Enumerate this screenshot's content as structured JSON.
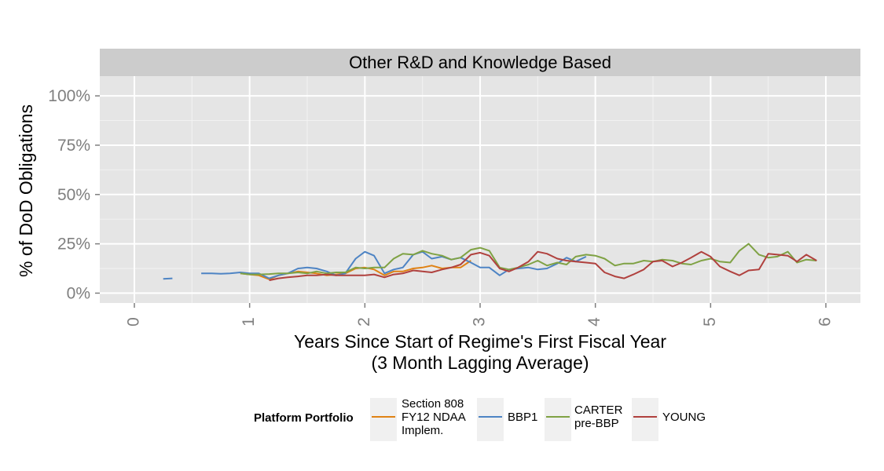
{
  "chart_data": {
    "type": "line",
    "facet_title": "Other R&D and Knowledge Based",
    "xlabel_lines": [
      "Years Since Start of Regime's First Fiscal Year",
      "(3 Month Lagging Average)"
    ],
    "ylabel": "% of DoD Obligations",
    "xlim": [
      -0.3,
      6.3
    ],
    "ylim": [
      -0.05,
      1.1
    ],
    "x_ticks": [
      0,
      1,
      2,
      3,
      4,
      5,
      6
    ],
    "x_tick_labels": [
      "0",
      "1",
      "2",
      "3",
      "4",
      "5",
      "6"
    ],
    "y_ticks": [
      0,
      0.25,
      0.5,
      0.75,
      1.0
    ],
    "y_tick_labels": [
      "0%",
      "25%",
      "50%",
      "75%",
      "100%"
    ],
    "grid": true,
    "legend": {
      "title": "Platform Portfolio",
      "position": "bottom",
      "entries": [
        {
          "label_lines": [
            "Section 808",
            "FY12 NDAA",
            "Implem."
          ],
          "color": "#E08214"
        },
        {
          "label_lines": [
            "BBP1"
          ],
          "color": "#4E84C4"
        },
        {
          "label_lines": [
            "CARTER",
            "pre-BBP"
          ],
          "color": "#7FA244"
        },
        {
          "label_lines": [
            "YOUNG"
          ],
          "color": "#B0413E"
        }
      ]
    },
    "series": [
      {
        "name": "Section 808 FY12 NDAA Implem.",
        "color": "#E08214",
        "segments": [
          [
            [
              0.92,
              0.1
            ],
            [
              1.0,
              0.095
            ],
            [
              1.08,
              0.09
            ],
            [
              1.17,
              0.07
            ],
            [
              1.25,
              0.09
            ],
            [
              1.33,
              0.1
            ],
            [
              1.42,
              0.11
            ],
            [
              1.5,
              0.105
            ],
            [
              1.58,
              0.1
            ],
            [
              1.67,
              0.09
            ],
            [
              1.75,
              0.095
            ],
            [
              1.83,
              0.1
            ],
            [
              1.92,
              0.125
            ],
            [
              2.0,
              0.13
            ],
            [
              2.08,
              0.12
            ],
            [
              2.17,
              0.09
            ],
            [
              2.25,
              0.11
            ],
            [
              2.33,
              0.11
            ],
            [
              2.42,
              0.125
            ],
            [
              2.5,
              0.13
            ],
            [
              2.58,
              0.14
            ],
            [
              2.67,
              0.125
            ],
            [
              2.75,
              0.13
            ],
            [
              2.83,
              0.13
            ],
            [
              2.92,
              0.165
            ]
          ]
        ]
      },
      {
        "name": "BBP1",
        "color": "#4E84C4",
        "segments": [
          [
            [
              0.25,
              0.072
            ],
            [
              0.33,
              0.075
            ]
          ],
          [
            [
              0.58,
              0.1
            ],
            [
              0.67,
              0.1
            ],
            [
              0.75,
              0.098
            ],
            [
              0.83,
              0.1
            ],
            [
              0.92,
              0.105
            ],
            [
              1.0,
              0.1
            ],
            [
              1.08,
              0.1
            ],
            [
              1.17,
              0.075
            ],
            [
              1.25,
              0.09
            ],
            [
              1.33,
              0.1
            ],
            [
              1.42,
              0.125
            ],
            [
              1.5,
              0.13
            ],
            [
              1.58,
              0.125
            ],
            [
              1.67,
              0.11
            ],
            [
              1.75,
              0.09
            ],
            [
              1.83,
              0.1
            ],
            [
              1.92,
              0.175
            ],
            [
              2.0,
              0.21
            ],
            [
              2.08,
              0.19
            ],
            [
              2.17,
              0.1
            ],
            [
              2.25,
              0.12
            ],
            [
              2.33,
              0.13
            ],
            [
              2.42,
              0.195
            ],
            [
              2.5,
              0.21
            ],
            [
              2.58,
              0.175
            ],
            [
              2.67,
              0.185
            ],
            [
              2.75,
              0.17
            ],
            [
              2.83,
              0.18
            ],
            [
              2.92,
              0.155
            ],
            [
              3.0,
              0.13
            ],
            [
              3.08,
              0.13
            ],
            [
              3.17,
              0.09
            ],
            [
              3.25,
              0.12
            ],
            [
              3.33,
              0.125
            ],
            [
              3.42,
              0.13
            ],
            [
              3.5,
              0.12
            ],
            [
              3.58,
              0.125
            ],
            [
              3.67,
              0.15
            ],
            [
              3.75,
              0.18
            ],
            [
              3.83,
              0.16
            ],
            [
              3.92,
              0.185
            ]
          ]
        ]
      },
      {
        "name": "CARTER pre-BBP",
        "color": "#7FA244",
        "segments": [
          [
            [
              0.92,
              0.1
            ],
            [
              1.0,
              0.095
            ],
            [
              1.08,
              0.095
            ],
            [
              1.17,
              0.097
            ],
            [
              1.25,
              0.1
            ],
            [
              1.33,
              0.1
            ],
            [
              1.42,
              0.105
            ],
            [
              1.5,
              0.1
            ],
            [
              1.58,
              0.11
            ],
            [
              1.67,
              0.1
            ],
            [
              1.75,
              0.105
            ],
            [
              1.83,
              0.105
            ],
            [
              1.92,
              0.13
            ],
            [
              2.0,
              0.125
            ],
            [
              2.08,
              0.13
            ],
            [
              2.17,
              0.13
            ],
            [
              2.25,
              0.175
            ],
            [
              2.33,
              0.2
            ],
            [
              2.42,
              0.195
            ],
            [
              2.5,
              0.215
            ],
            [
              2.58,
              0.2
            ],
            [
              2.67,
              0.19
            ],
            [
              2.75,
              0.17
            ],
            [
              2.83,
              0.18
            ],
            [
              2.92,
              0.22
            ],
            [
              3.0,
              0.23
            ],
            [
              3.08,
              0.215
            ],
            [
              3.17,
              0.13
            ],
            [
              3.25,
              0.12
            ],
            [
              3.33,
              0.13
            ],
            [
              3.42,
              0.145
            ],
            [
              3.5,
              0.165
            ],
            [
              3.58,
              0.14
            ],
            [
              3.67,
              0.155
            ],
            [
              3.75,
              0.145
            ],
            [
              3.83,
              0.185
            ],
            [
              3.92,
              0.195
            ],
            [
              4.0,
              0.19
            ],
            [
              4.08,
              0.175
            ],
            [
              4.17,
              0.14
            ],
            [
              4.25,
              0.15
            ],
            [
              4.33,
              0.15
            ],
            [
              4.42,
              0.165
            ],
            [
              4.5,
              0.16
            ],
            [
              4.58,
              0.17
            ],
            [
              4.67,
              0.165
            ],
            [
              4.75,
              0.15
            ],
            [
              4.83,
              0.145
            ],
            [
              4.92,
              0.165
            ],
            [
              5.0,
              0.175
            ],
            [
              5.08,
              0.16
            ],
            [
              5.17,
              0.155
            ],
            [
              5.25,
              0.215
            ],
            [
              5.33,
              0.25
            ],
            [
              5.42,
              0.195
            ],
            [
              5.5,
              0.18
            ],
            [
              5.58,
              0.185
            ],
            [
              5.67,
              0.21
            ],
            [
              5.75,
              0.155
            ],
            [
              5.83,
              0.17
            ],
            [
              5.92,
              0.165
            ]
          ]
        ]
      },
      {
        "name": "YOUNG",
        "color": "#B0413E",
        "segments": [
          [
            [
              1.17,
              0.065
            ],
            [
              1.25,
              0.075
            ],
            [
              1.33,
              0.08
            ],
            [
              1.42,
              0.085
            ],
            [
              1.5,
              0.09
            ],
            [
              1.58,
              0.09
            ],
            [
              1.67,
              0.095
            ],
            [
              1.75,
              0.09
            ],
            [
              1.83,
              0.09
            ],
            [
              1.92,
              0.09
            ],
            [
              2.0,
              0.09
            ],
            [
              2.08,
              0.095
            ],
            [
              2.17,
              0.08
            ],
            [
              2.25,
              0.095
            ],
            [
              2.33,
              0.1
            ],
            [
              2.42,
              0.115
            ],
            [
              2.5,
              0.11
            ],
            [
              2.58,
              0.105
            ],
            [
              2.67,
              0.12
            ],
            [
              2.75,
              0.13
            ],
            [
              2.83,
              0.145
            ],
            [
              2.92,
              0.195
            ],
            [
              3.0,
              0.205
            ],
            [
              3.08,
              0.19
            ],
            [
              3.17,
              0.125
            ],
            [
              3.25,
              0.11
            ],
            [
              3.33,
              0.13
            ],
            [
              3.42,
              0.16
            ],
            [
              3.5,
              0.21
            ],
            [
              3.58,
              0.2
            ],
            [
              3.67,
              0.175
            ],
            [
              3.75,
              0.165
            ],
            [
              3.83,
              0.16
            ],
            [
              3.92,
              0.155
            ],
            [
              4.0,
              0.15
            ],
            [
              4.08,
              0.105
            ],
            [
              4.17,
              0.085
            ],
            [
              4.25,
              0.075
            ],
            [
              4.33,
              0.095
            ],
            [
              4.42,
              0.12
            ],
            [
              4.5,
              0.16
            ],
            [
              4.58,
              0.165
            ],
            [
              4.67,
              0.135
            ],
            [
              4.75,
              0.155
            ],
            [
              4.83,
              0.18
            ],
            [
              4.92,
              0.21
            ],
            [
              5.0,
              0.185
            ],
            [
              5.08,
              0.135
            ],
            [
              5.17,
              0.11
            ],
            [
              5.25,
              0.09
            ],
            [
              5.33,
              0.115
            ],
            [
              5.42,
              0.12
            ],
            [
              5.5,
              0.2
            ],
            [
              5.58,
              0.195
            ],
            [
              5.67,
              0.19
            ],
            [
              5.75,
              0.16
            ],
            [
              5.83,
              0.195
            ],
            [
              5.92,
              0.165
            ]
          ]
        ]
      }
    ]
  }
}
